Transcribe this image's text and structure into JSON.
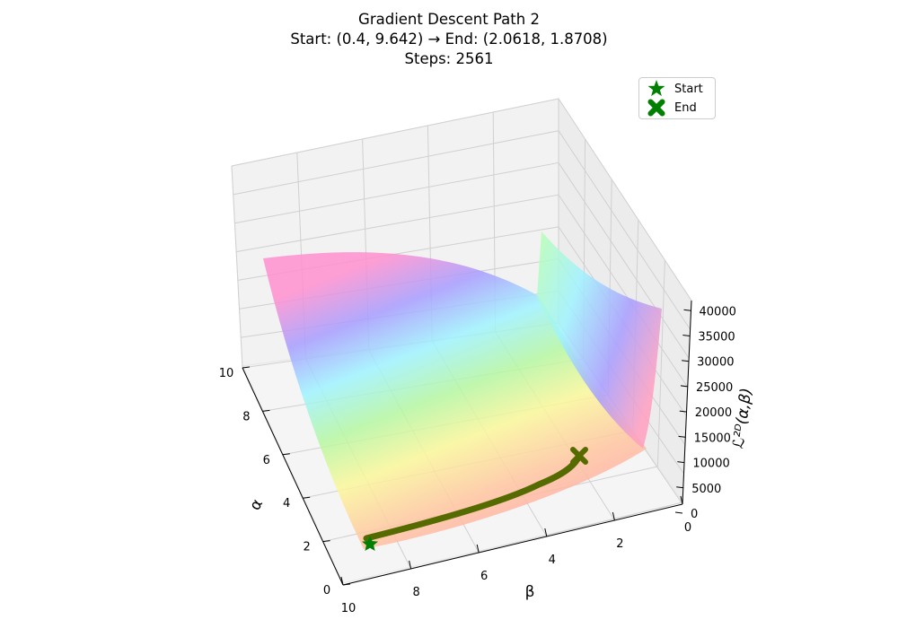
{
  "title": {
    "line1": "Gradient Descent Path 2",
    "line2": "Start: (0.4, 9.642) → End: (2.0618, 1.8708)",
    "line3": "Steps: 2561"
  },
  "legend": {
    "start_label": "Start",
    "end_label": "End"
  },
  "colors": {
    "marker": "#008000",
    "path": "#556b00",
    "pane": "#f2f2f2",
    "grid": "#c8c8c8"
  },
  "chart_data": {
    "type": "surface3d",
    "xlabel": "β",
    "ylabel": "α",
    "zlabel": "ℒ²ᴰ(α,β)",
    "x_ticks": [
      "10",
      "8",
      "6",
      "4",
      "2",
      "0"
    ],
    "y_ticks": [
      "10",
      "8",
      "6",
      "4",
      "2",
      "0"
    ],
    "z_ticks": [
      "0",
      "5000",
      "10000",
      "15000",
      "20000",
      "25000",
      "30000",
      "35000",
      "40000"
    ],
    "xlim": [
      0,
      10
    ],
    "ylim": [
      0,
      10
    ],
    "zlim": [
      0,
      42000
    ],
    "colormap": "gist_rainbow (translucent)",
    "path": {
      "start": {
        "alpha": 0.4,
        "beta": 9.642
      },
      "end": {
        "alpha": 2.0618,
        "beta": 1.8708
      },
      "steps": 2561
    },
    "legend_position": "top-right"
  }
}
